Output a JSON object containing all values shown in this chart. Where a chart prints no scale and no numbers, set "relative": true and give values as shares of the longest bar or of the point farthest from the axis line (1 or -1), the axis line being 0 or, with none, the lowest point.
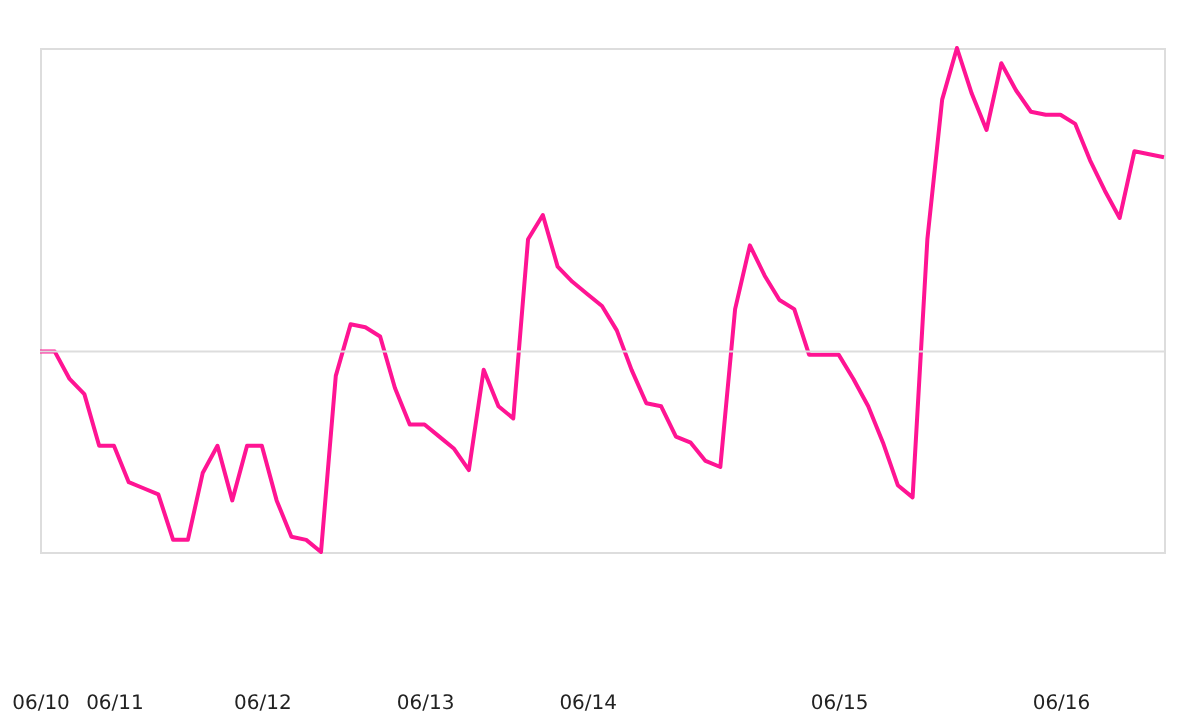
{
  "chart_data": {
    "type": "line",
    "relative": true,
    "grid": false,
    "legend": false,
    "marker": "none",
    "line_style": "solid",
    "tick_labels": "x",
    "categories": [
      "06/10",
      null,
      null,
      null,
      null,
      "06/11",
      null,
      null,
      null,
      null,
      null,
      null,
      null,
      null,
      null,
      "06/12",
      null,
      null,
      null,
      null,
      null,
      null,
      null,
      null,
      null,
      null,
      "06/13",
      null,
      null,
      null,
      null,
      null,
      null,
      null,
      null,
      null,
      null,
      "06/14",
      null,
      null,
      null,
      null,
      null,
      null,
      null,
      null,
      null,
      null,
      null,
      null,
      null,
      null,
      null,
      null,
      "06/15",
      null,
      null,
      null,
      null,
      null,
      null,
      null,
      null,
      null,
      null,
      null,
      null,
      null,
      null,
      "06/16",
      null,
      null,
      null,
      null,
      null,
      null,
      null
    ],
    "series": [
      {
        "color": "#ff1493",
        "values": [
          0,
          0,
          -0.09,
          -0.14,
          -0.31,
          -0.31,
          -0.43,
          -0.45,
          -0.47,
          -0.62,
          -0.62,
          -0.4,
          -0.31,
          -0.49,
          -0.31,
          -0.31,
          -0.49,
          -0.61,
          -0.62,
          -0.66,
          -0.08,
          0.09,
          0.08,
          0.05,
          -0.12,
          -0.24,
          -0.24,
          -0.28,
          -0.32,
          -0.39,
          -0.06,
          -0.18,
          -0.22,
          0.37,
          0.45,
          0.28,
          0.23,
          0.19,
          0.15,
          0.07,
          -0.06,
          -0.17,
          -0.18,
          -0.28,
          -0.3,
          -0.36,
          -0.38,
          0.14,
          0.35,
          0.25,
          0.17,
          0.14,
          -0.01,
          -0.01,
          -0.01,
          -0.09,
          -0.18,
          -0.3,
          -0.44,
          -0.48,
          0.37,
          0.83,
          1,
          0.85,
          0.73,
          0.95,
          0.86,
          0.79,
          0.78,
          0.78,
          0.75,
          0.63,
          0.53,
          0.44,
          0.66,
          0.65,
          0.64
        ]
      }
    ],
    "ref_lines": [
      {
        "axis": "y",
        "value": 0,
        "color": "#dddddd"
      }
    ]
  }
}
